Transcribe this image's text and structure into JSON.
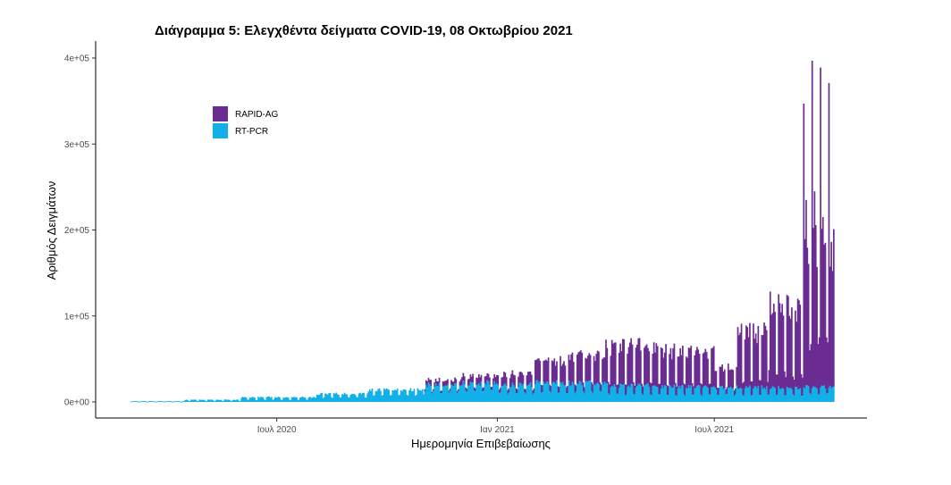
{
  "chart_data": {
    "type": "bar",
    "stacked": true,
    "title": "Διάγραμμα 5: Ελεγχθέντα δείγματα COVID-19, 08 Οκτωβρίου 2021",
    "xlabel": "Ημερομηνία Επιβεβαίωσης",
    "ylabel": "Αριθμός Δειγμάτων",
    "x_range": [
      "2020-03-01",
      "2021-10-08"
    ],
    "x_ticks": [
      {
        "date": "2020-07-01",
        "label": "Ιουλ 2020"
      },
      {
        "date": "2021-01-01",
        "label": "Ιαν 2021"
      },
      {
        "date": "2021-07-01",
        "label": "Ιουλ 2021"
      }
    ],
    "ylim": [
      0,
      410000
    ],
    "y_ticks": [
      {
        "value": 0,
        "label": "0e+00"
      },
      {
        "value": 100000,
        "label": "1e+05"
      },
      {
        "value": 200000,
        "label": "2e+05"
      },
      {
        "value": 300000,
        "label": "3e+05"
      },
      {
        "value": 400000,
        "label": "4e+05"
      }
    ],
    "legend_position": "top-left",
    "series": [
      {
        "name": "RAPID-AG",
        "color": "#6a2c91"
      },
      {
        "name": "RT-PCR",
        "color": "#12b0e8"
      }
    ],
    "segments": [
      {
        "start": "2020-03-01",
        "end": "2020-04-15",
        "pcr_weekday": 800,
        "pcr_weekend": 300,
        "rapid_weekday": 0,
        "rapid_weekend": 0
      },
      {
        "start": "2020-04-15",
        "end": "2020-06-01",
        "pcr_weekday": 2500,
        "pcr_weekend": 1200,
        "rapid_weekday": 0,
        "rapid_weekend": 0
      },
      {
        "start": "2020-06-01",
        "end": "2020-08-01",
        "pcr_weekday": 5500,
        "pcr_weekend": 2500,
        "rapid_weekday": 0,
        "rapid_weekend": 0
      },
      {
        "start": "2020-08-01",
        "end": "2020-09-15",
        "pcr_weekday": 9500,
        "pcr_weekend": 5000,
        "rapid_weekday": 0,
        "rapid_weekend": 0
      },
      {
        "start": "2020-09-15",
        "end": "2020-11-01",
        "pcr_weekday": 14000,
        "pcr_weekend": 8000,
        "rapid_weekday": 0,
        "rapid_weekend": 0
      },
      {
        "start": "2020-11-01",
        "end": "2020-12-01",
        "pcr_weekday": 20000,
        "pcr_weekend": 11000,
        "rapid_weekday": 6000,
        "rapid_weekend": 2500
      },
      {
        "start": "2020-12-01",
        "end": "2021-01-01",
        "pcr_weekday": 22000,
        "pcr_weekend": 12000,
        "rapid_weekday": 9000,
        "rapid_weekend": 3500
      },
      {
        "start": "2021-01-01",
        "end": "2021-02-01",
        "pcr_weekday": 20000,
        "pcr_weekend": 10000,
        "rapid_weekday": 13000,
        "rapid_weekend": 5000
      },
      {
        "start": "2021-02-01",
        "end": "2021-03-01",
        "pcr_weekday": 22000,
        "pcr_weekend": 11000,
        "rapid_weekday": 26000,
        "rapid_weekend": 8000
      },
      {
        "start": "2021-03-01",
        "end": "2021-04-01",
        "pcr_weekday": 22000,
        "pcr_weekend": 11000,
        "rapid_weekday": 32000,
        "rapid_weekend": 9000
      },
      {
        "start": "2021-04-01",
        "end": "2021-05-15",
        "pcr_weekday": 19000,
        "pcr_weekend": 9000,
        "rapid_weekday": 46000,
        "rapid_weekend": 12000
      },
      {
        "start": "2021-05-15",
        "end": "2021-07-01",
        "pcr_weekday": 18000,
        "pcr_weekend": 8000,
        "rapid_weekday": 42000,
        "rapid_weekend": 12000
      },
      {
        "start": "2021-07-01",
        "end": "2021-07-20",
        "pcr_weekday": 17000,
        "pcr_weekend": 8000,
        "rapid_weekday": 24000,
        "rapid_weekend": 7000
      },
      {
        "start": "2021-07-20",
        "end": "2021-08-15",
        "pcr_weekday": 17000,
        "pcr_weekend": 8000,
        "rapid_weekday": 65000,
        "rapid_weekend": 16000
      },
      {
        "start": "2021-08-15",
        "end": "2021-09-05",
        "pcr_weekday": 16000,
        "pcr_weekend": 8000,
        "rapid_weekday": 95000,
        "rapid_weekend": 25000
      },
      {
        "start": "2021-09-05",
        "end": "2021-09-13",
        "pcr_weekday": 16000,
        "pcr_weekend": 8000,
        "rapid_weekday": 88000,
        "rapid_weekend": 22000
      },
      {
        "start": "2021-09-13",
        "end": "2021-10-09",
        "pcr_weekday": 17000,
        "pcr_weekend": 9000,
        "rapid_weekday": 160000,
        "rapid_weekend": 55000
      }
    ],
    "peaks": [
      {
        "date": "2021-09-13",
        "total": 347000
      },
      {
        "date": "2021-09-20",
        "total": 397000
      },
      {
        "date": "2021-09-27",
        "total": 389000
      },
      {
        "date": "2021-10-04",
        "total": 371000
      },
      {
        "date": "2021-09-15",
        "total": 235000
      },
      {
        "date": "2021-09-22",
        "total": 245000
      },
      {
        "date": "2021-09-29",
        "total": 215000
      },
      {
        "date": "2021-10-08",
        "total": 201000
      }
    ]
  }
}
